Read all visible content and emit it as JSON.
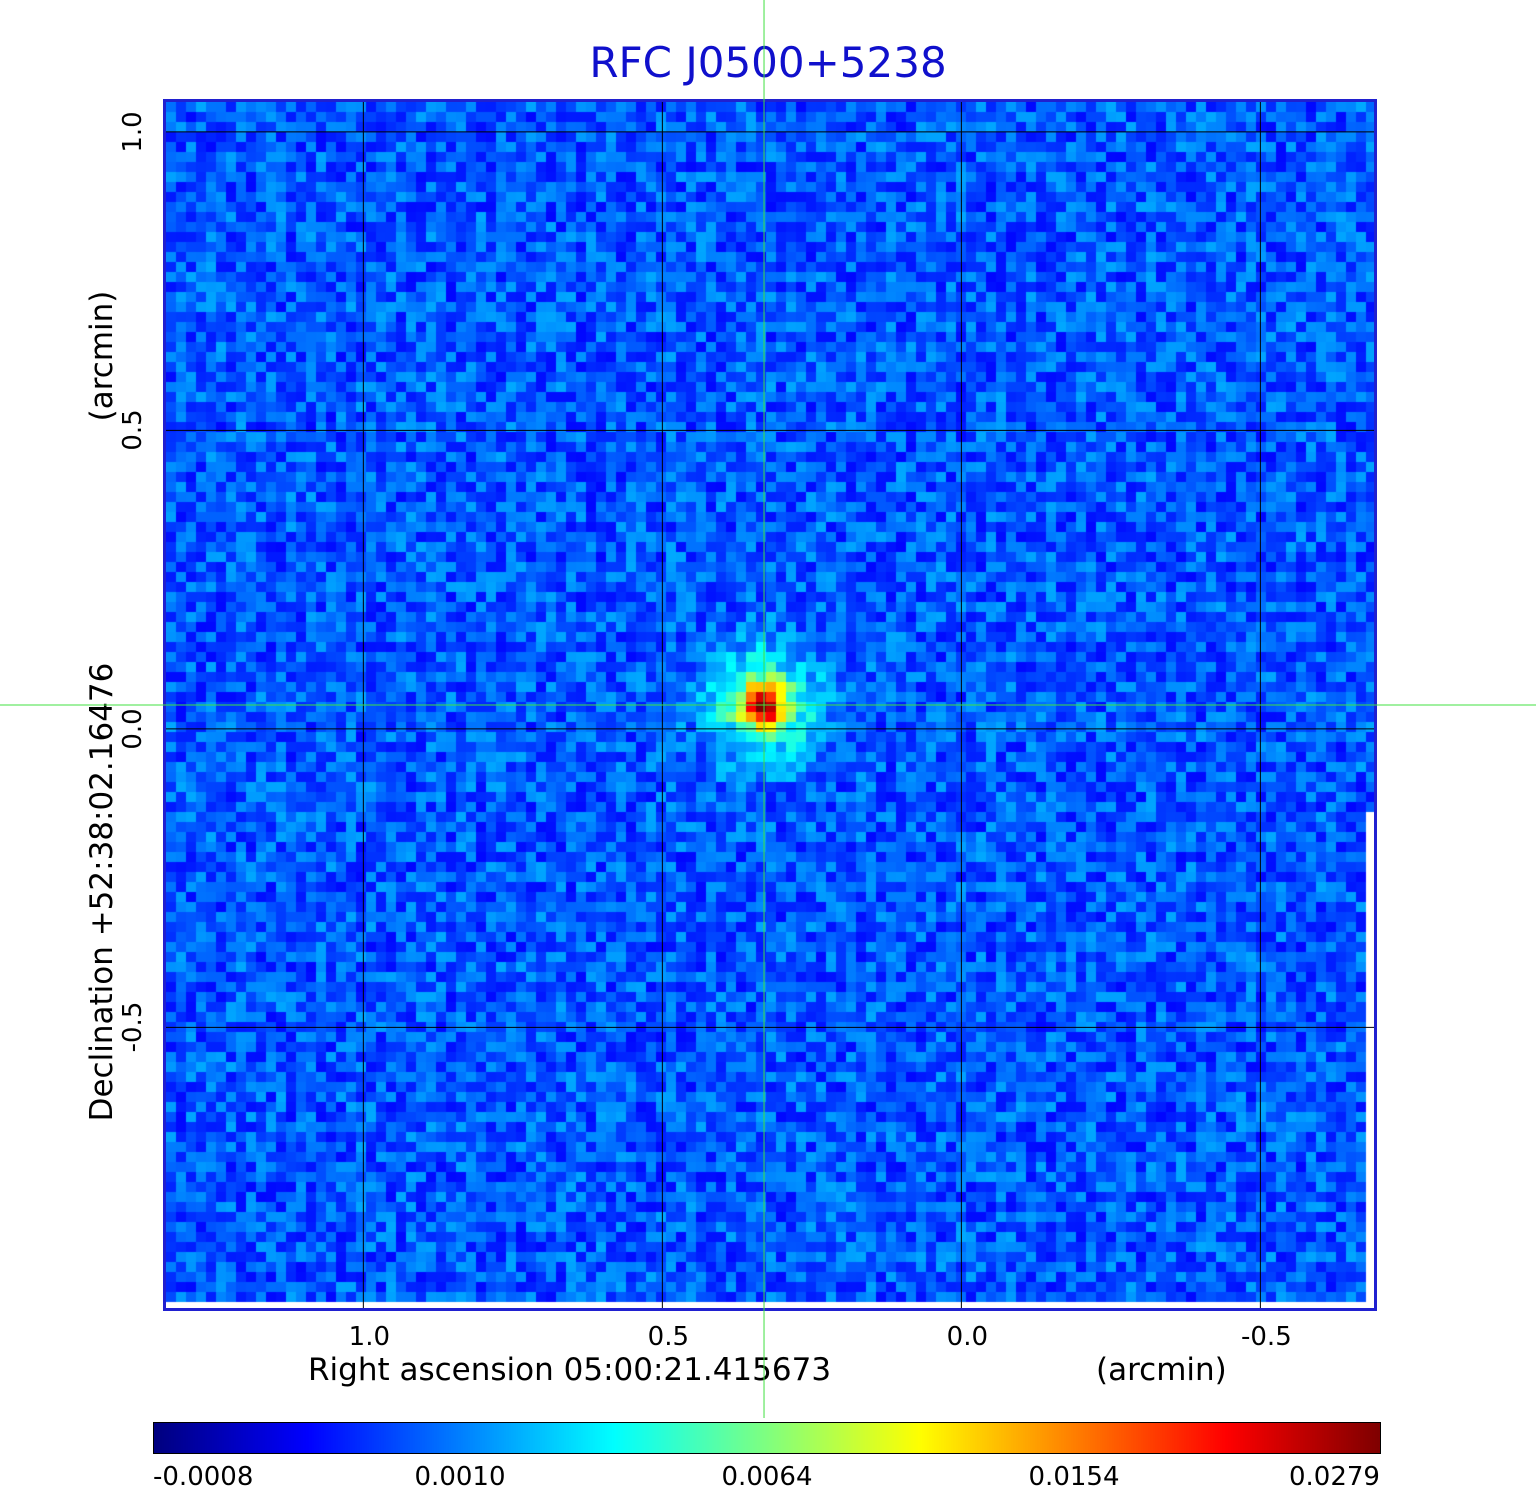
{
  "chart_data": {
    "type": "heatmap",
    "title": "RFC J0500+5238",
    "xlabel": "Right ascension  05:00:21.415673",
    "xunit": "(arcmin)",
    "ylabel": "Declination  +52:38:02.16476",
    "yunit": "(arcmin)",
    "x_ticks": [
      "1.0",
      "0.5",
      "0.0",
      "-0.5"
    ],
    "y_ticks": [
      "1.0",
      "0.5",
      "0.0",
      "-0.5"
    ],
    "x_tick_values": [
      1.0,
      0.5,
      0.0,
      -0.5
    ],
    "y_tick_values": [
      1.0,
      0.5,
      0.0,
      -0.5
    ],
    "xlim": [
      1.33,
      -0.69
    ],
    "ylim": [
      -0.97,
      1.05
    ],
    "grid": true,
    "source_position": [
      0.33,
      0.04
    ],
    "source_peak": 0.0279,
    "colorbar": {
      "ticks": [
        "-0.0008",
        "0.0010",
        "0.0064",
        "0.0154",
        "0.0279"
      ],
      "tick_values": [
        -0.0008,
        0.001,
        0.0064,
        0.0154,
        0.0279
      ],
      "colormap": "jet"
    }
  },
  "colors": {
    "title": "#1010cc",
    "frame": "#2020d0",
    "crosshair": "#40e040",
    "grid": "#000000"
  }
}
